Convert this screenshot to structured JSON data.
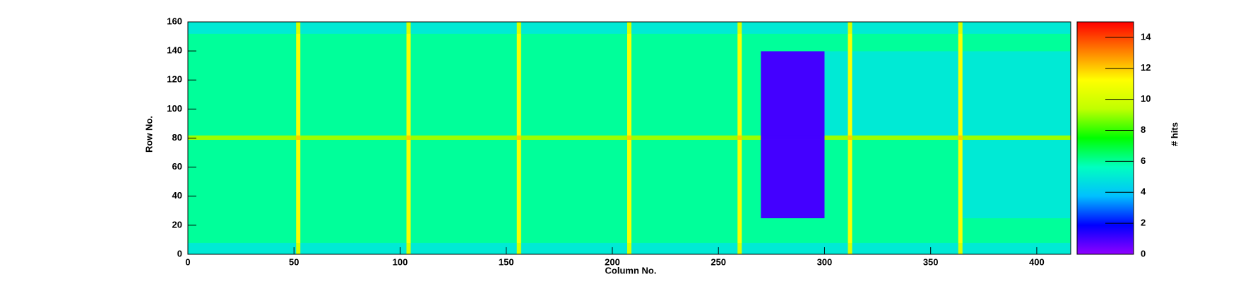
{
  "chart_data": {
    "type": "heatmap",
    "x_label": "Column No.",
    "y_label": "Row No.",
    "z_label": "# hits",
    "xbins": [
      0,
      26,
      51,
      53,
      78,
      103,
      105,
      130,
      155,
      157,
      182,
      207,
      209,
      234,
      259,
      261,
      270,
      300,
      311,
      313,
      338,
      363,
      365,
      390,
      416
    ],
    "ybins": [
      0,
      8,
      25,
      79,
      82,
      140,
      152,
      160
    ],
    "z": [
      [
        5,
        5,
        10,
        5,
        5,
        10,
        5,
        5,
        10,
        5,
        5,
        10,
        5,
        5,
        10,
        5,
        5,
        5,
        10,
        5,
        5,
        10,
        5,
        5
      ],
      [
        6,
        6,
        11,
        6,
        6,
        11,
        6,
        6,
        11,
        6,
        6,
        11,
        6,
        6,
        11,
        6,
        6,
        6,
        11,
        6,
        6,
        11,
        6,
        6
      ],
      [
        6,
        6,
        11,
        6,
        6,
        11,
        6,
        6,
        11,
        6,
        6,
        11,
        6,
        6,
        11,
        6,
        1,
        6,
        11,
        6,
        6,
        11,
        5,
        5
      ],
      [
        9,
        9,
        12,
        9,
        9,
        12,
        9,
        9,
        12,
        9,
        9,
        12,
        9,
        9,
        12,
        9,
        1,
        9,
        12,
        9,
        9,
        12,
        9,
        9
      ],
      [
        6,
        6,
        11,
        6,
        6,
        11,
        6,
        6,
        11,
        6,
        6,
        11,
        6,
        6,
        11,
        6,
        1,
        5,
        11,
        5,
        5,
        11,
        5,
        5
      ],
      [
        6,
        6,
        11,
        6,
        6,
        11,
        6,
        6,
        11,
        6,
        6,
        11,
        6,
        6,
        11,
        6,
        6,
        6,
        11,
        6,
        6,
        11,
        6,
        6
      ],
      [
        5,
        5,
        10,
        5,
        5,
        10,
        5,
        5,
        10,
        5,
        5,
        10,
        5,
        5,
        10,
        5,
        5,
        5,
        10,
        5,
        5,
        10,
        5,
        5
      ]
    ],
    "xlim": [
      0,
      416
    ],
    "xticks": [
      0,
      50,
      100,
      150,
      200,
      250,
      300,
      350,
      400
    ],
    "ylim": [
      0,
      160
    ],
    "yticks": [
      0,
      20,
      40,
      60,
      80,
      100,
      120,
      140,
      160
    ],
    "zlim": [
      0,
      15
    ],
    "zticks": [
      0,
      2,
      4,
      6,
      8,
      10,
      12,
      14
    ],
    "colorscale": [
      "#9000ff",
      "#0000ff",
      "#00c0ff",
      "#00ffc0",
      "#00ff00",
      "#c0ff00",
      "#ffff00",
      "#ff8000",
      "#ff0000"
    ]
  }
}
